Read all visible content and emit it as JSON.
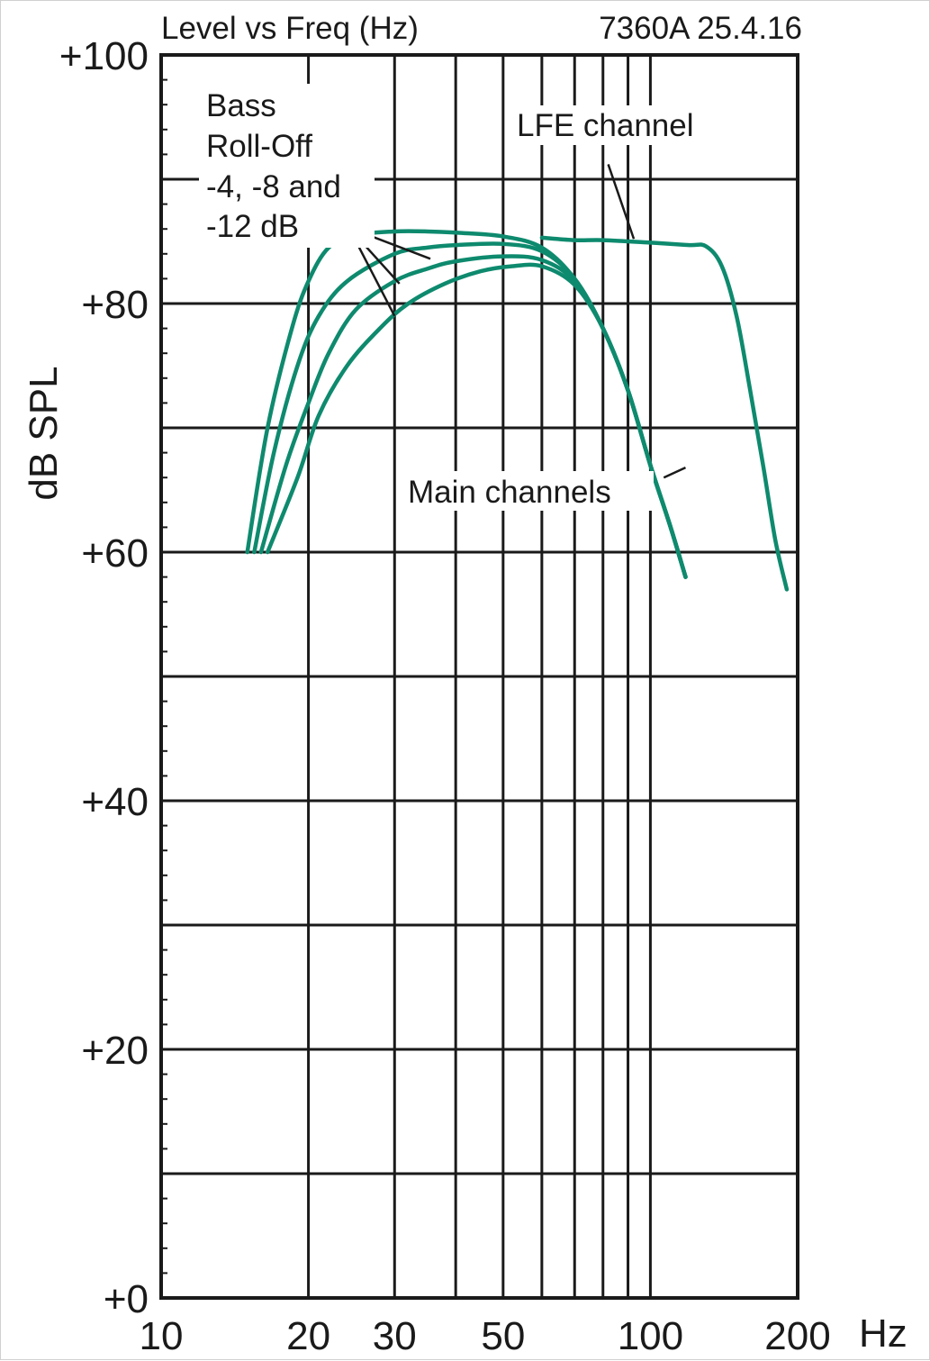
{
  "chart_data": {
    "type": "line",
    "title": "Level vs Freq (Hz)",
    "subtitle": "7360A 25.4.16",
    "xlabel": "Hz",
    "ylabel": "dB SPL",
    "x_scale": "log",
    "xlim": [
      10,
      200
    ],
    "ylim": [
      0,
      100
    ],
    "x_ticks": [
      10,
      20,
      30,
      50,
      100,
      200
    ],
    "x_tick_labels": [
      "10",
      "20",
      "30",
      "50",
      "100",
      "200"
    ],
    "x_grid": [
      20,
      30,
      40,
      50,
      60,
      70,
      80,
      90,
      100
    ],
    "y_ticks": [
      0,
      20,
      40,
      60,
      80,
      100
    ],
    "y_tick_labels": [
      "+0",
      "+20",
      "+40",
      "+60",
      "+80",
      "+100"
    ],
    "y_grid": [
      10,
      20,
      30,
      40,
      50,
      60,
      70,
      80,
      90
    ],
    "grid": true,
    "line_color": "#0e8a6e",
    "series": [
      {
        "x": [
          15.0,
          16.5,
          18.5,
          20.0,
          22.0,
          25.0,
          30.0,
          35.0,
          40.0,
          50.0,
          60.0,
          70.0,
          80.0,
          90.0,
          100.0,
          110.0,
          118.0
        ],
        "y": [
          60.0,
          70.0,
          78.0,
          81.8,
          84.5,
          85.5,
          85.8,
          85.8,
          85.7,
          85.4,
          84.5,
          82.0,
          78.0,
          73.0,
          67.0,
          62.0,
          58.0
        ]
      },
      {
        "x": [
          15.5,
          17.0,
          19.0,
          21.0,
          24.0,
          30.0,
          35.0,
          40.0,
          50.0,
          60.0,
          70.0,
          80.0,
          90.0,
          100.0,
          110.0,
          118.0
        ],
        "y": [
          60.0,
          68.0,
          75.0,
          79.0,
          81.8,
          84.0,
          84.5,
          84.7,
          84.8,
          84.2,
          82.0,
          78.0,
          73.0,
          67.0,
          62.0,
          58.0
        ]
      },
      {
        "x": [
          16.0,
          18.0,
          20.0,
          22.0,
          25.0,
          30.0,
          35.0,
          40.0,
          50.0,
          60.0,
          70.0,
          80.0,
          90.0,
          100.0,
          110.0,
          118.0
        ],
        "y": [
          60.0,
          67.0,
          72.0,
          76.0,
          79.5,
          81.8,
          82.8,
          83.4,
          83.8,
          83.5,
          81.8,
          78.0,
          73.0,
          67.0,
          62.0,
          58.0
        ]
      },
      {
        "x": [
          16.5,
          19.0,
          21.0,
          24.0,
          28.0,
          32.0,
          38.0,
          45.0,
          52.0,
          60.0,
          70.0,
          80.0,
          90.0,
          100.0,
          110.0,
          118.0
        ],
        "y": [
          60.0,
          66.0,
          71.0,
          75.0,
          78.0,
          80.0,
          81.6,
          82.6,
          83.0,
          83.0,
          81.5,
          78.0,
          73.0,
          67.0,
          62.0,
          58.0
        ]
      },
      {
        "x": [
          60.0,
          70.0,
          80.0,
          100.0,
          120.0,
          130.0,
          140.0,
          150.0,
          160.0,
          170.0,
          180.0,
          190.0
        ],
        "y": [
          85.3,
          85.1,
          85.1,
          84.9,
          84.7,
          84.6,
          83.0,
          79.0,
          73.0,
          67.0,
          61.0,
          57.0
        ]
      }
    ],
    "annotations": [
      {
        "lines": [
          "Bass",
          "Roll-Off",
          "-4, -8 and",
          "-12 dB"
        ]
      },
      {
        "lines": [
          "LFE channel"
        ]
      },
      {
        "lines": [
          "Main channels"
        ]
      }
    ]
  }
}
